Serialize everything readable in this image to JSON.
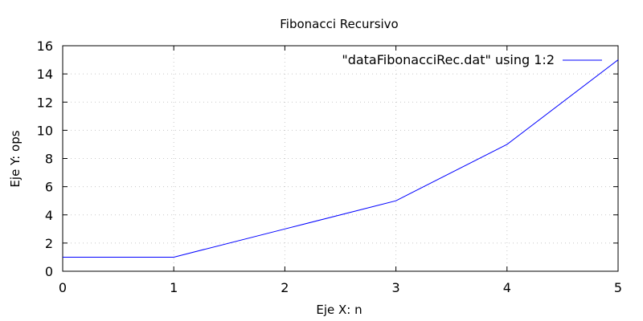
{
  "chart_data": {
    "type": "line",
    "title": "Fibonacci Recursivo",
    "xlabel": "Eje X: n",
    "ylabel": "Eje Y: ops",
    "xlim": [
      0,
      5
    ],
    "ylim": [
      0,
      16
    ],
    "xticks": [
      0,
      1,
      2,
      3,
      4,
      5
    ],
    "yticks": [
      0,
      2,
      4,
      6,
      8,
      10,
      12,
      14,
      16
    ],
    "grid": true,
    "legend_position": "top-right",
    "series": [
      {
        "name": "\"dataFibonacciRec.dat\" using 1:2",
        "color": "#0000ff",
        "x": [
          0,
          1,
          2,
          3,
          4,
          5
        ],
        "y": [
          1,
          1,
          3,
          5,
          9,
          15
        ]
      }
    ]
  }
}
